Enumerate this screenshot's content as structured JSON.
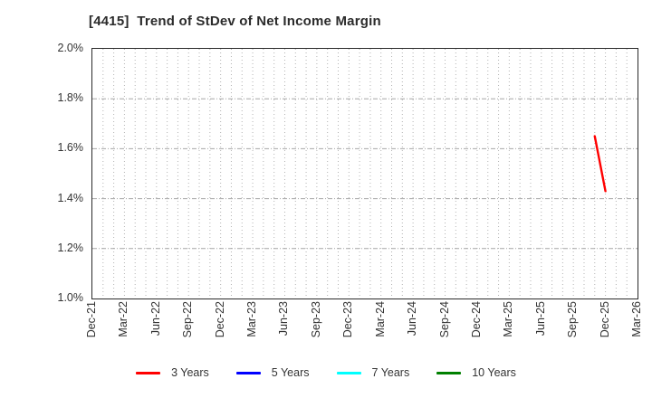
{
  "figure": {
    "title": "[4415]  Trend of StDev of Net Income Margin"
  },
  "chart_data": {
    "type": "line",
    "title": "[4415]  Trend of StDev of Net Income Margin",
    "x_axis": {
      "start": "Dec-21",
      "end": "Mar-26",
      "months_total": 51,
      "tick_every_months": 3,
      "tick_labels": [
        "Dec-21",
        "Mar-22",
        "Jun-22",
        "Sep-22",
        "Dec-22",
        "Mar-23",
        "Jun-23",
        "Sep-23",
        "Dec-23",
        "Mar-24",
        "Jun-24",
        "Sep-24",
        "Dec-24",
        "Mar-25",
        "Jun-25",
        "Sep-25",
        "Dec-25",
        "Mar-26"
      ],
      "tick_label_rotation_deg": 90
    },
    "y_axis": {
      "min": 1.0,
      "max": 2.0,
      "tick_step": 0.2,
      "unit": "%",
      "tick_labels": [
        "1.0%",
        "1.2%",
        "1.4%",
        "1.6%",
        "1.8%",
        "2.0%"
      ]
    },
    "grid": {
      "vertical": "monthly, dotted",
      "horizontal": "every 0.2%, dash-dot",
      "vertical_color": "#b3b3b3",
      "horizontal_color": "#a6a6a6"
    },
    "series": [
      {
        "name": "3 Years",
        "color": "#ff0000",
        "points": [
          {
            "x_label": "Nov-25",
            "month_index": 47,
            "value": 1.65
          },
          {
            "x_label": "Dec-25",
            "month_index": 48,
            "value": 1.43
          }
        ]
      },
      {
        "name": "5 Years",
        "color": "#0000ff",
        "points": []
      },
      {
        "name": "7 Years",
        "color": "#00ffff",
        "points": []
      },
      {
        "name": "10 Years",
        "color": "#008000",
        "points": []
      }
    ],
    "legend_position": "bottom"
  },
  "legend": {
    "items": [
      {
        "label": "3 Years",
        "color": "#ff0000"
      },
      {
        "label": "5 Years",
        "color": "#0000ff"
      },
      {
        "label": "7 Years",
        "color": "#00ffff"
      },
      {
        "label": "10 Years",
        "color": "#008000"
      }
    ]
  }
}
